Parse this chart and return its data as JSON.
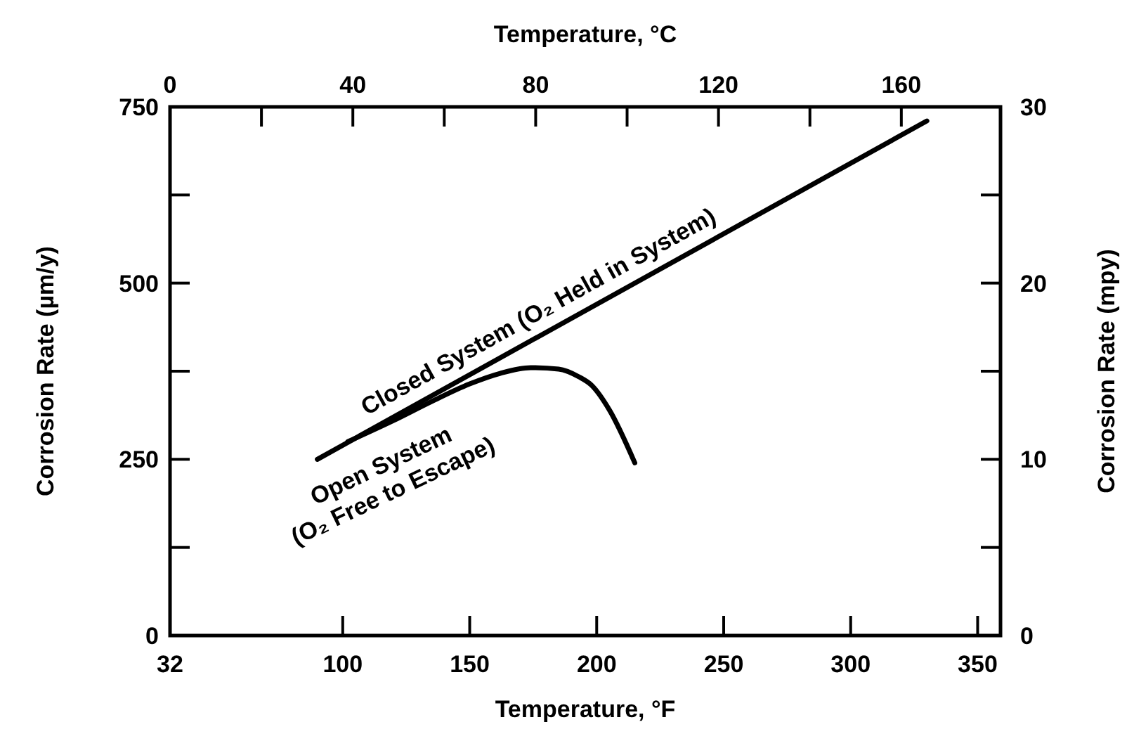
{
  "chart_data": {
    "type": "line",
    "xlabel": "Temperature, °F",
    "x2label": "Temperature, °C",
    "ylabel": "Corrosion Rate (µm/y)",
    "y2label": "Corrosion Rate (mpy)",
    "xlim": [
      32,
      359
    ],
    "xticks": [
      32,
      100,
      150,
      200,
      250,
      300,
      350
    ],
    "x2lim": [
      0,
      181.7
    ],
    "x2ticks": [
      0,
      {
        "value": 20,
        "label": null
      },
      40,
      {
        "value": 60,
        "label": null
      },
      80,
      {
        "value": 100,
        "label": null
      },
      120,
      {
        "value": 140,
        "label": null
      },
      160
    ],
    "ylim": [
      0,
      750
    ],
    "yticks": [
      0,
      {
        "value": 125,
        "label": null
      },
      250,
      {
        "value": 375,
        "label": null
      },
      500,
      {
        "value": 625,
        "label": null
      },
      750
    ],
    "y2lim": [
      0,
      30
    ],
    "y2ticks": [
      0,
      {
        "value": 5,
        "label": null
      },
      10,
      {
        "value": 15,
        "label": null
      },
      20,
      {
        "value": 25,
        "label": null
      },
      30
    ],
    "grid": false,
    "marker": "none",
    "line_style": "solid",
    "series": [
      {
        "name": "Closed System (O₂ Held in System)",
        "color": "#000000",
        "x": [
          90,
          330
        ],
        "values": [
          250,
          730
        ]
      },
      {
        "name": "Open System\n(O₂ Free to Escape)",
        "color": "#000000",
        "x": [
          102,
          120,
          135,
          150,
          162,
          174,
          185,
          193,
          198,
          205,
          215
        ],
        "values": [
          275,
          305,
          332,
          357,
          372,
          380,
          378,
          367,
          355,
          320,
          245
        ]
      }
    ]
  }
}
